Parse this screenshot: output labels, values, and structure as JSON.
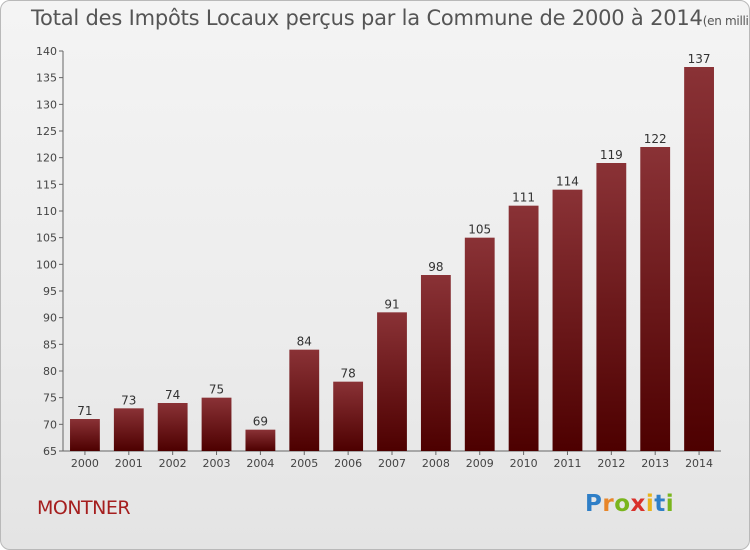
{
  "title": "Total des Impôts Locaux perçus par la Commune de 2000 à 2014",
  "title_unit": "(en milliers d'€)",
  "commune": "MONTNER",
  "logo": {
    "letters": [
      "P",
      "r",
      "o",
      "x",
      "i",
      "t",
      "i"
    ],
    "colors": [
      "#2f7fc7",
      "#e8862a",
      "#7ab51d",
      "#d9312b",
      "#e8b41c",
      "#2f7fc7",
      "#7ab51d"
    ]
  },
  "colors": {
    "bar_top": "#8a3236",
    "bar_bottom": "#4d0000",
    "commune": "#a51e1e"
  },
  "chart_data": {
    "type": "bar",
    "title": "Total des Impôts Locaux perçus par la Commune de 2000 à 2014",
    "categories": [
      "2000",
      "2001",
      "2002",
      "2003",
      "2004",
      "2005",
      "2006",
      "2007",
      "2008",
      "2009",
      "2010",
      "2011",
      "2012",
      "2013",
      "2014"
    ],
    "values": [
      71,
      73,
      74,
      75,
      69,
      84,
      78,
      91,
      98,
      105,
      111,
      114,
      119,
      122,
      137
    ],
    "ylim": [
      65,
      140
    ],
    "yticks": [
      65,
      70,
      75,
      80,
      85,
      90,
      95,
      100,
      105,
      110,
      115,
      120,
      125,
      130,
      135,
      140
    ],
    "grid": false,
    "xlabel": "",
    "ylabel": ""
  }
}
